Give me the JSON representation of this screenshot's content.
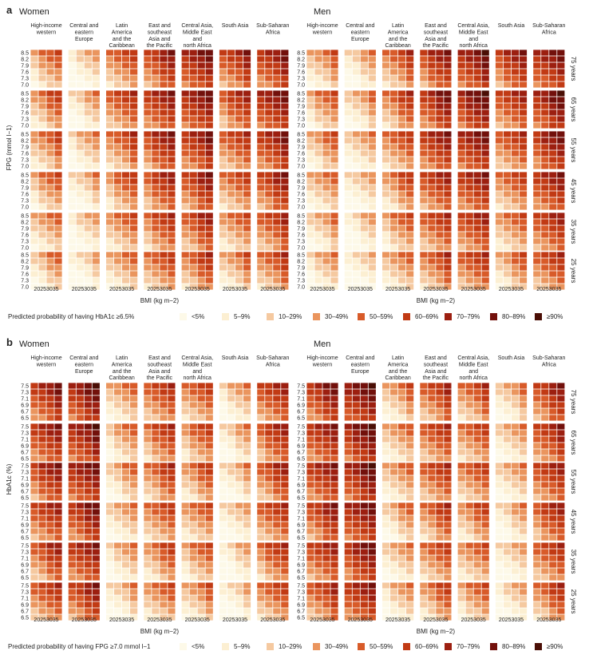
{
  "legend_colors": [
    "#fdf9e8",
    "#fcefd2",
    "#f5c9a0",
    "#ea955e",
    "#d85b29",
    "#c13a14",
    "#9c1f10",
    "#72100b",
    "#4a0e05"
  ],
  "chart_data": [
    {
      "type": "heatmap",
      "panel_letter": "a",
      "ylabel": "FPG (mmol l−1)",
      "yticks": [
        "8.5",
        "8.2",
        "7.9",
        "7.6",
        "7.3",
        "7.0"
      ],
      "xlabel": "BMI (kg m−2)",
      "xtick_labels": "20253035",
      "bmi_values": [
        20,
        25,
        30,
        35
      ],
      "sexes": [
        "Women",
        "Men"
      ],
      "regions": [
        "High-income western",
        "Central and eastern Europe",
        "Latin America and the Caribbean",
        "East and southeast Asia and the Pacific",
        "Central Asia, Middle East and north Africa",
        "South Asia",
        "Sub-Saharan Africa"
      ],
      "region_headers": [
        [
          "High-income",
          "western"
        ],
        [
          "Central and",
          "eastern",
          "Europe"
        ],
        [
          "Latin",
          "America",
          "and the",
          "Caribbean"
        ],
        [
          "East and",
          "southeast",
          "Asia and",
          "the Pacific"
        ],
        [
          "Central Asia,",
          "Middle East",
          "and",
          "north Africa"
        ],
        [
          "South Asia"
        ],
        [
          "Sub-Saharan",
          "Africa"
        ]
      ],
      "men_region_headers": [
        [
          "High-income",
          "western"
        ],
        [
          "Central and",
          "eastern",
          "Europe"
        ],
        [
          "Latin",
          "America",
          "and the",
          "Caribbean"
        ],
        [
          "East and",
          "southeast",
          "Asia and",
          "the Pacific"
        ],
        [
          "Central Asia,",
          "Middle East",
          "and",
          "north Africa"
        ],
        [
          "South Asia"
        ],
        [
          "Sub-Saharan",
          "Africa"
        ]
      ],
      "age_groups": [
        "75 years",
        "65 years",
        "55 years",
        "45 years",
        "35 years",
        "25 years"
      ],
      "legend_title": "Predicted probability of having HbA1c ≥6.5%",
      "legend_categories": [
        "<5%",
        "5–9%",
        "10–29%",
        "30–49%",
        "50–59%",
        "60–69%",
        "70–79%",
        "80–89%",
        "≥90%"
      ],
      "region_levels": {
        "Women": [
          [
            2.9,
            3.3,
            3.2,
            2.9,
            2.6,
            2.3
          ],
          [
            1.4,
            1.8,
            1.9,
            1.7,
            1.4,
            1.2
          ],
          [
            3.6,
            4.0,
            3.7,
            3.4,
            3.0,
            2.6
          ],
          [
            4.8,
            5.1,
            4.9,
            4.4,
            3.9,
            3.5
          ],
          [
            5.5,
            5.6,
            5.2,
            4.8,
            4.3,
            3.8
          ],
          [
            4.7,
            4.4,
            4.0,
            3.5,
            3.0,
            2.7
          ],
          [
            5.2,
            5.5,
            5.2,
            4.8,
            4.2,
            3.7
          ]
        ],
        "Men": [
          [
            2.7,
            2.9,
            2.8,
            2.5,
            2.2,
            1.9
          ],
          [
            1.8,
            2.2,
            2.0,
            1.6,
            1.3,
            1.0
          ],
          [
            3.7,
            3.8,
            3.6,
            3.3,
            2.9,
            2.5
          ],
          [
            4.9,
            5.3,
            5.0,
            4.6,
            4.1,
            3.7
          ],
          [
            5.7,
            5.9,
            5.5,
            5.0,
            4.5,
            4.0
          ],
          [
            4.9,
            4.6,
            4.1,
            3.6,
            3.1,
            2.8
          ],
          [
            5.6,
            5.8,
            5.4,
            5.0,
            4.5,
            4.0
          ]
        ]
      }
    },
    {
      "type": "heatmap",
      "panel_letter": "b",
      "ylabel": "HbA1c (%)",
      "yticks": [
        "7.5",
        "7.3",
        "7.1",
        "6.9",
        "6.7",
        "6.5"
      ],
      "xlabel": "BMI (kg m−2)",
      "xtick_labels": "20253035",
      "bmi_values": [
        20,
        25,
        30,
        35
      ],
      "sexes": [
        "Women",
        "Men"
      ],
      "regions": [
        "High-income western",
        "Central and eastern Europe",
        "Latin America and the Caribbean",
        "East and southeast Asia and the Pacific",
        "Central Asia, Middle East and north Africa",
        "South Asia",
        "Sub-Saharan Africa"
      ],
      "region_headers": [
        [
          "High-income",
          "western"
        ],
        [
          "Central and",
          "eastern",
          "Europe"
        ],
        [
          "Latin",
          "America",
          "and the",
          "Caribbean"
        ],
        [
          "East and",
          "southeast",
          "Asia and",
          "the Pacific"
        ],
        [
          "Central Asia,",
          "Middle East",
          "and",
          "north Africa"
        ],
        [
          "South Asia"
        ],
        [
          "Sub-Saharan",
          "Africa"
        ]
      ],
      "men_region_headers": [
        [
          "High-income",
          "western"
        ],
        [
          "Central and",
          "eastern",
          "Europe"
        ],
        [
          "Latin",
          "America",
          "and the",
          "Caribbean"
        ],
        [
          "East and",
          "southeast",
          "Asia and",
          "the Pacific"
        ],
        [
          "Central Asia,",
          "Middle East",
          "and",
          "north Africa"
        ],
        [
          "South Asia"
        ],
        [
          "Sub-Saharan",
          "Africa"
        ]
      ],
      "age_groups": [
        "75 years",
        "65 years",
        "55 years",
        "45 years",
        "35 years",
        "25 years"
      ],
      "legend_title": "Predicted probability of having FPG ≥7.0 mmol l−1",
      "legend_categories": [
        "<5%",
        "5–9%",
        "10–29%",
        "30–49%",
        "50–59%",
        "60–69%",
        "70–79%",
        "80–89%",
        "≥90%"
      ],
      "region_levels": {
        "Women": [
          [
            5.2,
            5.0,
            4.9,
            4.6,
            4.3,
            4.0
          ],
          [
            5.8,
            5.7,
            5.6,
            5.3,
            5.1,
            4.8
          ],
          [
            2.5,
            2.4,
            2.3,
            2.1,
            1.9,
            1.7
          ],
          [
            4.0,
            3.9,
            3.8,
            3.6,
            3.3,
            3.0
          ],
          [
            3.5,
            3.4,
            3.3,
            3.1,
            2.9,
            2.7
          ],
          [
            1.9,
            1.8,
            1.7,
            1.5,
            1.3,
            1.2
          ],
          [
            4.5,
            4.4,
            4.3,
            4.1,
            3.9,
            3.6
          ]
        ],
        "Men": [
          [
            5.3,
            5.1,
            5.0,
            4.8,
            4.5,
            4.2
          ],
          [
            6.1,
            5.9,
            5.8,
            5.6,
            5.4,
            5.1
          ],
          [
            2.7,
            2.6,
            2.5,
            2.3,
            2.1,
            1.9
          ],
          [
            4.2,
            4.1,
            4.0,
            3.8,
            3.6,
            3.3
          ],
          [
            3.7,
            3.6,
            3.5,
            3.3,
            3.1,
            2.9
          ],
          [
            2.2,
            2.1,
            2.0,
            1.8,
            1.6,
            1.4
          ],
          [
            4.8,
            4.7,
            4.6,
            4.4,
            4.1,
            3.8
          ]
        ]
      }
    }
  ]
}
